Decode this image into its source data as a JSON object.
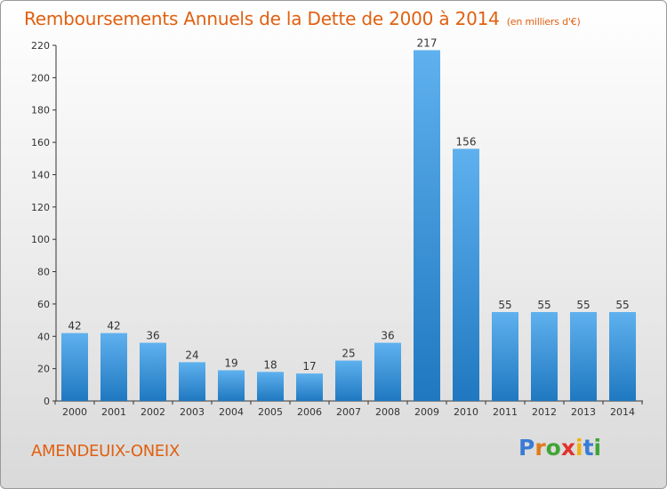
{
  "header": {
    "title": "Remboursements Annuels de la Dette de 2000 à 2014",
    "subtitle": "(en milliers d'€)"
  },
  "footer": {
    "commune": "AMENDEUIX-ONEIX",
    "logo_text": "Proxiti"
  },
  "colors": {
    "title": "#e06010",
    "bar_light": "#5fb1ee",
    "bar_dark": "#1f78c0"
  },
  "chart_data": {
    "type": "bar",
    "categories": [
      "2000",
      "2001",
      "2002",
      "2003",
      "2004",
      "2005",
      "2006",
      "2007",
      "2008",
      "2009",
      "2010",
      "2011",
      "2012",
      "2013",
      "2014"
    ],
    "values": [
      42,
      42,
      36,
      24,
      19,
      18,
      17,
      25,
      36,
      217,
      156,
      55,
      55,
      55,
      55
    ],
    "ylim": [
      0,
      220
    ],
    "yticks": [
      0,
      20,
      40,
      60,
      80,
      100,
      120,
      140,
      160,
      180,
      200,
      220
    ],
    "grid": false,
    "data_labels": true
  }
}
